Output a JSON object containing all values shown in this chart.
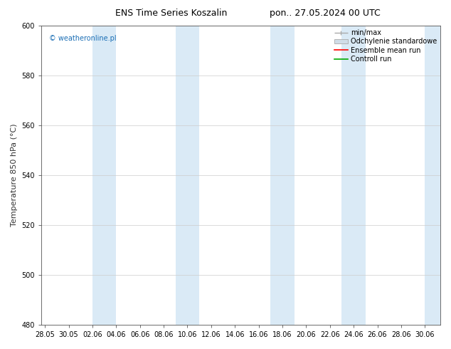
{
  "title_left": "ENS Time Series Koszalin",
  "title_right": "pon.. 27.05.2024 00 UTC",
  "ylabel": "Temperature 850 hPa (°C)",
  "ylim": [
    480,
    600
  ],
  "yticks": [
    480,
    500,
    520,
    540,
    560,
    580,
    600
  ],
  "xtick_labels": [
    "28.05",
    "30.05",
    "02.06",
    "04.06",
    "06.06",
    "08.06",
    "10.06",
    "12.06",
    "14.06",
    "16.06",
    "18.06",
    "20.06",
    "22.06",
    "24.06",
    "26.06",
    "28.06",
    "30.06"
  ],
  "xmin": 0,
  "xmax": 33,
  "band_starts": [
    4,
    11,
    19,
    25,
    32
  ],
  "band_ends": [
    6,
    13,
    21,
    27,
    34
  ],
  "band_color": "#daeaf6",
  "background_color": "#ffffff",
  "watermark": "© weatheronline.pl",
  "watermark_color": "#1a6eb5",
  "legend_items": [
    "min/max",
    "Odchylenie standardowe",
    "Ensemble mean run",
    "Controll run"
  ],
  "minmax_color": "#aaaaaa",
  "std_facecolor": "#d0dde8",
  "std_edgecolor": "#aaaaaa",
  "ens_color": "#ff0000",
  "ctrl_color": "#00aa00",
  "title_fontsize": 9,
  "tick_fontsize": 7,
  "ylabel_fontsize": 8,
  "legend_fontsize": 7
}
